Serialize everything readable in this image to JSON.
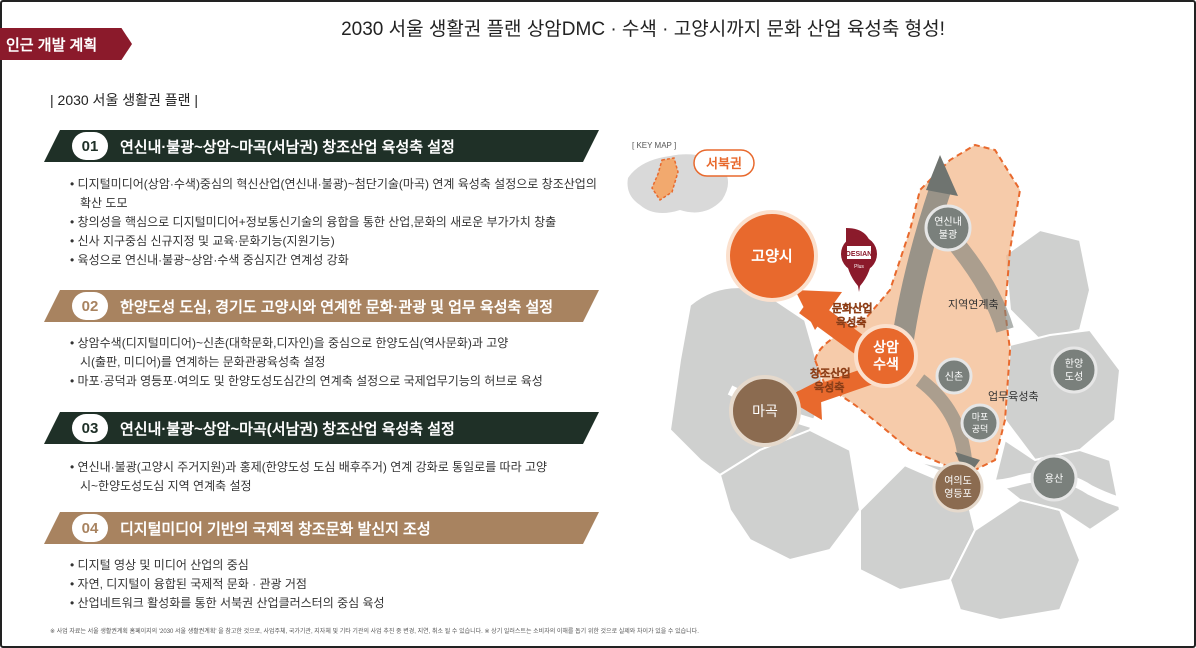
{
  "badge": "인근 개발 계획",
  "headline": "2030 서울 생활권 플랜 상암DMC · 수색 · 고양시까지 문화 산업 육성축 형성!",
  "section_title": "| 2030 서울 생활권 플랜 |",
  "items": [
    {
      "num": "01",
      "title": "연신내·불광~상암~마곡(서남권) 창조산업 육성축 설정",
      "bullets": [
        "디지털미디어(상암·수색)중심의 혁신산업(연신내·불광)~첨단기술(마곡) 연계 육성축 설정으로 창조산업의 확산 도모",
        "창의성을 핵심으로 디지털미디어+정보통신기술의 융합을 통한 산업,문화의 새로운 부가가치 창출",
        "신사 지구중심 신규지정 및 교육·문화기능(지원기능)",
        "육성으로 연신내·불광~상암·수색 중심지간 연계성 강화"
      ]
    },
    {
      "num": "02",
      "title": "한양도성 도심, 경기도 고양시와 연계한 문화·관광 및 업무 육성축 설정",
      "bullets": [
        "상암수색(디지털미디어)~신촌(대학문화,디자인)을 중심으로 한양도심(역사문화)과 고양시(출판, 미디어)를 연계하는 문화관광육성축 설정",
        "마포·공덕과 영등포·여의도 및 한양도성도심간의 연계축 설정으로 국제업무기능의 허브로 육성"
      ]
    },
    {
      "num": "03",
      "title": "연신내·불광~상암~마곡(서남권) 창조산업 육성축 설정",
      "bullets": [
        "연신내·불광(고양시 주거지원)과 홍제(한양도성 도심 배후주거) 연계 강화로 통일로를 따라 고양시~한양도성도심 지역 연계축 설정"
      ]
    },
    {
      "num": "04",
      "title": "디지털미디어 기반의 국제적 창조문화 발신지 조성",
      "bullets": [
        "디지털 영상 및 미디어 산업의 중심",
        "자연, 디지털이 융합된 국제적 문화 · 관광 거점",
        "산업네트워크 활성화를 통한 서북권 산업클러스터의 중심 육성"
      ]
    }
  ],
  "footnote": "※ 사업 자료는 서울 생활권계획 홈페이지의 '2030 서울 생활권계획' 을 참고한 것으로, 사업주체, 국가기관, 지자체 및 기타 기관의 사업 추진 중 변경, 지연, 취소 될 수 있습니다. ※ 상기 일러스트는 소비자의 이해를 돕기 위한 것으로 실제와 차이가 있을 수 있습니다.",
  "map": {
    "key_map": "[ KEY MAP ]",
    "key_label": "서북권",
    "logo": "DESIAN",
    "logo_sub": "Plus",
    "nodes": {
      "goyang": "고양시",
      "magok": "마곡",
      "sangam": [
        "상암",
        "수색"
      ],
      "yeonsinnae": [
        "연신내",
        "불광"
      ],
      "sinchon": "신촌",
      "mapo": [
        "마포",
        "공덕"
      ],
      "yeouido": [
        "여의도",
        "영등포"
      ],
      "hanyang": [
        "한양",
        "도성"
      ],
      "yongsan": "용산"
    },
    "axes": {
      "culture": [
        "문화산업",
        "육성축"
      ],
      "creative": [
        "창조산업",
        "육성축"
      ],
      "region": "지역연계축",
      "business": "업무육성축"
    },
    "colors": {
      "orange": "#e8692d",
      "brown": "#8b6b50",
      "gray_node": "#7a807c",
      "district": "#cfd0cf",
      "highlight": "#f3b98e",
      "maroon": "#8b1a2b",
      "dark_green": "#1f3027",
      "tan": "#a88360"
    }
  }
}
